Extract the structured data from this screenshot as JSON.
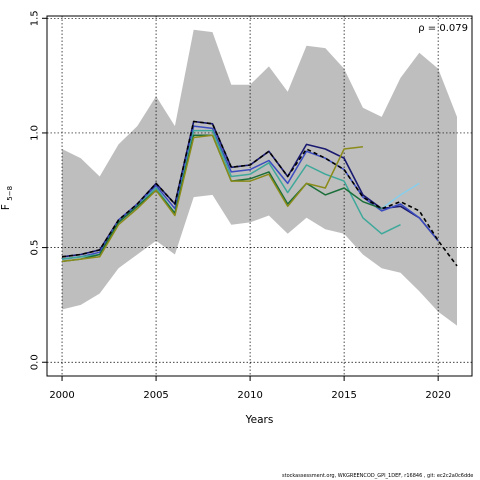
{
  "chart_data": {
    "type": "line",
    "ylabel": "F",
    "ylabel_sub": "5−8",
    "xlabel": "Years",
    "xlim": [
      1999.2,
      2021.8
    ],
    "ylim": [
      -0.06,
      1.51
    ],
    "x_ticks": [
      2000,
      2005,
      2010,
      2015,
      2020
    ],
    "y_ticks": [
      0.0,
      0.5,
      1.0,
      1.5
    ],
    "y_tick_labels": [
      "0.0",
      "0.5",
      "1.0",
      "1.5"
    ],
    "grid": true,
    "annotation": "ρ = 0.079",
    "band": {
      "color": "#bebebe",
      "x": [
        2000,
        2001,
        2002,
        2003,
        2004,
        2005,
        2006,
        2007,
        2008,
        2009,
        2010,
        2011,
        2012,
        2013,
        2014,
        2015,
        2016,
        2017,
        2018,
        2019,
        2020,
        2021
      ],
      "upper": [
        0.93,
        0.89,
        0.81,
        0.95,
        1.03,
        1.16,
        1.03,
        1.45,
        1.44,
        1.21,
        1.21,
        1.29,
        1.18,
        1.38,
        1.37,
        1.28,
        1.11,
        1.07,
        1.24,
        1.35,
        1.28,
        1.07
      ],
      "lower": [
        0.23,
        0.25,
        0.3,
        0.41,
        0.47,
        0.53,
        0.47,
        0.72,
        0.73,
        0.6,
        0.61,
        0.64,
        0.56,
        0.63,
        0.58,
        0.56,
        0.47,
        0.41,
        0.39,
        0.31,
        0.22,
        0.16
      ]
    },
    "series": [
      {
        "color": "#191970",
        "dash": false,
        "width": 1.6,
        "x": [
          2000,
          2001,
          2002,
          2003,
          2004,
          2005,
          2006,
          2007,
          2008,
          2009,
          2010,
          2011,
          2012,
          2013,
          2014,
          2015,
          2016,
          2017,
          2018,
          2019,
          2020,
          2021
        ],
        "values": [
          0.46,
          0.47,
          0.49,
          0.62,
          0.69,
          0.78,
          0.69,
          1.05,
          1.04,
          0.85,
          0.86,
          0.92,
          0.81,
          0.95,
          0.93,
          0.89,
          0.73,
          0.67,
          0.68,
          0.63,
          0.53,
          null
        ]
      },
      {
        "color": "#3b4cc0",
        "dash": false,
        "width": 1.5,
        "x": [
          2000,
          2001,
          2002,
          2003,
          2004,
          2005,
          2006,
          2007,
          2008,
          2009,
          2010,
          2011,
          2012,
          2013,
          2014,
          2015,
          2016,
          2017,
          2018,
          2019,
          2020
        ],
        "values": [
          0.45,
          0.46,
          0.48,
          0.62,
          0.69,
          0.77,
          0.67,
          1.03,
          1.02,
          0.83,
          0.84,
          0.88,
          0.78,
          0.92,
          0.89,
          0.84,
          0.72,
          0.66,
          0.69,
          0.63,
          0.53
        ]
      },
      {
        "color": "#3ea89a",
        "dash": false,
        "width": 1.5,
        "x": [
          2000,
          2001,
          2002,
          2003,
          2004,
          2005,
          2006,
          2007,
          2008,
          2009,
          2010,
          2011,
          2012,
          2013,
          2014,
          2015,
          2016,
          2017,
          2018
        ],
        "values": [
          0.45,
          0.46,
          0.47,
          0.61,
          0.68,
          0.76,
          0.65,
          1.01,
          1.01,
          0.81,
          0.82,
          0.87,
          0.74,
          0.86,
          0.82,
          0.79,
          0.63,
          0.56,
          0.6
        ]
      },
      {
        "color": "#1b6e3a",
        "dash": false,
        "width": 1.5,
        "x": [
          2000,
          2001,
          2002,
          2003,
          2004,
          2005,
          2006,
          2007,
          2008,
          2009,
          2010,
          2011,
          2012,
          2013,
          2014,
          2015,
          2016,
          2017
        ],
        "values": [
          0.44,
          0.45,
          0.47,
          0.61,
          0.68,
          0.75,
          0.65,
          0.99,
          0.99,
          0.79,
          0.8,
          0.83,
          0.69,
          0.78,
          0.73,
          0.76,
          0.7,
          0.67
        ]
      },
      {
        "color": "#8b8b1a",
        "dash": false,
        "width": 1.5,
        "x": [
          2000,
          2001,
          2002,
          2003,
          2004,
          2005,
          2006,
          2007,
          2008,
          2009,
          2010,
          2011,
          2012,
          2013,
          2014,
          2015,
          2016
        ],
        "values": [
          0.44,
          0.45,
          0.46,
          0.6,
          0.67,
          0.75,
          0.64,
          0.98,
          0.99,
          0.79,
          0.79,
          0.82,
          0.68,
          0.78,
          0.76,
          0.93,
          0.94
        ]
      },
      {
        "color": "#87ceeb",
        "dash": false,
        "width": 1.5,
        "x": [
          2017,
          2018,
          2019
        ],
        "values": [
          0.67,
          0.73,
          0.78
        ]
      },
      {
        "color": "#000000",
        "dash": true,
        "width": 1.6,
        "x": [
          2000,
          2001,
          2002,
          2003,
          2004,
          2005,
          2006,
          2007,
          2008,
          2009,
          2010,
          2011,
          2012,
          2013,
          2014,
          2015,
          2016,
          2017,
          2018,
          2019,
          2020,
          2021
        ],
        "values": [
          0.46,
          0.47,
          0.49,
          0.62,
          0.69,
          0.78,
          0.69,
          1.05,
          1.04,
          0.85,
          0.86,
          0.92,
          0.81,
          0.93,
          0.89,
          0.84,
          0.72,
          0.67,
          0.7,
          0.66,
          0.53,
          0.42
        ]
      }
    ]
  },
  "footer_text": "stockassessment.org, WKGREENCOD_GPI_1DEF, r16846 , git: ec2c2a0c6dde"
}
